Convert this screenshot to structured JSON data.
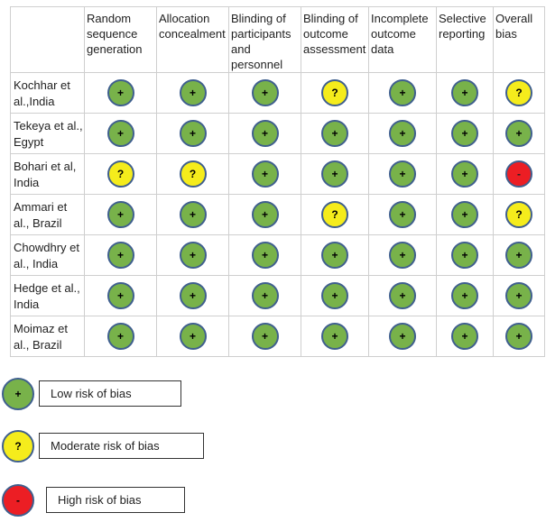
{
  "headers": {
    "study": "",
    "domains": [
      "Random sequence generation",
      "Allocation concealment",
      "Blinding of participants and personnel",
      "Blinding of outcome assessment",
      "Incomplete outcome data",
      "Selective reporting",
      "Overall bias"
    ]
  },
  "studies": [
    {
      "name": "Kochhar et al.,India",
      "ratings": [
        "low",
        "low",
        "low",
        "moderate",
        "low",
        "low",
        "moderate"
      ]
    },
    {
      "name": "Tekeya et al., Egypt",
      "ratings": [
        "low",
        "low",
        "low",
        "low",
        "low",
        "low",
        "low"
      ]
    },
    {
      "name": "Bohari et al, India",
      "ratings": [
        "moderate",
        "moderate",
        "low",
        "low",
        "low",
        "low",
        "high"
      ]
    },
    {
      "name": "Ammari et al., Brazil",
      "ratings": [
        "low",
        "low",
        "low",
        "moderate",
        "low",
        "low",
        "moderate"
      ]
    },
    {
      "name": "Chowdhry et al., India",
      "ratings": [
        "low",
        "low",
        "low",
        "low",
        "low",
        "low",
        "low"
      ]
    },
    {
      "name": "Hedge et al., India",
      "ratings": [
        "low",
        "low",
        "low",
        "low",
        "low",
        "low",
        "low"
      ]
    },
    {
      "name": "Moimaz et al., Brazil",
      "ratings": [
        "low",
        "low",
        "low",
        "low",
        "low",
        "low",
        "low"
      ]
    }
  ],
  "symbols": {
    "low": "+",
    "moderate": "?",
    "high": "-"
  },
  "colors": {
    "low": "#78b24a",
    "moderate": "#f5ec1c",
    "high": "#ec1e24",
    "outline": "#3f5f8e"
  },
  "legend": [
    {
      "level": "low",
      "label": "Low risk of bias"
    },
    {
      "level": "moderate",
      "label": "Moderate risk of bias"
    },
    {
      "level": "high",
      "label": "High risk of bias"
    }
  ]
}
